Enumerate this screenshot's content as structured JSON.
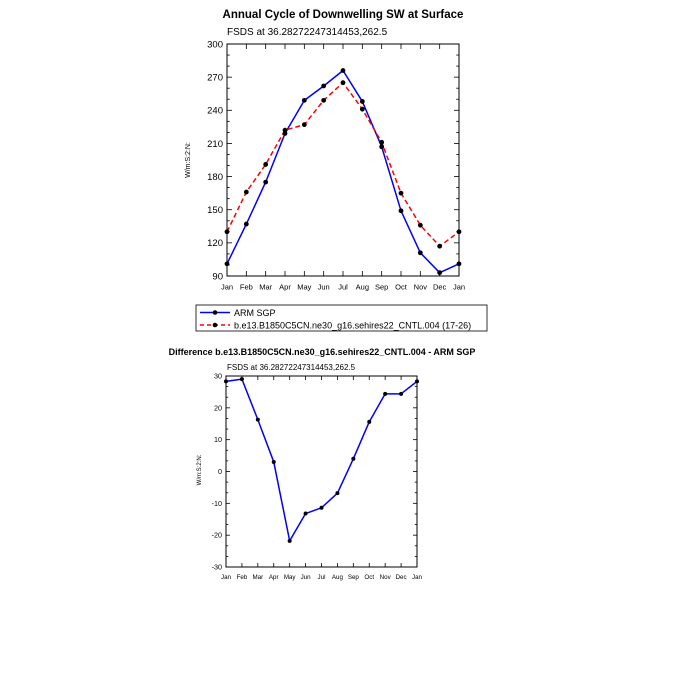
{
  "chart_data": [
    {
      "type": "line",
      "title": "Annual Cycle of Downwelling SW at Surface",
      "subtitle": "FSDS at 36.28272247314453,262.5",
      "xlabel": "",
      "ylabel": "W/m:S:2:N:",
      "categories": [
        "Jan",
        "Feb",
        "Mar",
        "Apr",
        "May",
        "Jun",
        "Jul",
        "Aug",
        "Sep",
        "Oct",
        "Nov",
        "Dec",
        "Jan"
      ],
      "ylim": [
        90,
        300
      ],
      "yticks": [
        90,
        120,
        150,
        180,
        210,
        240,
        270,
        300
      ],
      "legend_position": "bottom",
      "series": [
        {
          "name": "ARM SGP",
          "color": "#0000ff",
          "dash": "solid",
          "values": [
            101,
            137,
            175,
            219,
            249,
            262,
            276,
            248,
            207,
            149,
            111,
            93,
            101
          ]
        },
        {
          "name": "b.e13.B1850C5CN.ne30_g16.sehires22_CNTL.004 (17-26)",
          "color": "#ff0000",
          "dash": "dashed",
          "values": [
            130,
            166,
            191,
            222,
            227,
            249,
            265,
            241,
            211,
            165,
            136,
            117,
            130
          ]
        }
      ]
    },
    {
      "type": "line",
      "title": "Difference b.e13.B1850C5CN.ne30_g16.sehires22_CNTL.004 - ARM SGP",
      "subtitle": "FSDS at 36.28272247314453,262.5",
      "xlabel": "",
      "ylabel": "W/m:S:2:N:",
      "categories": [
        "Jan",
        "Feb",
        "Mar",
        "Apr",
        "May",
        "Jun",
        "Jul",
        "Aug",
        "Sep",
        "Oct",
        "Nov",
        "Dec",
        "Jan"
      ],
      "ylim": [
        -30,
        30
      ],
      "yticks": [
        -30,
        -20,
        -10,
        0,
        10,
        20,
        30
      ],
      "series": [
        {
          "name": "Difference",
          "color": "#0000ff",
          "dash": "solid",
          "values": [
            28.3,
            29,
            16.3,
            3,
            -21.8,
            -13.2,
            -11.4,
            -6.8,
            4,
            15.6,
            24.4,
            24.4,
            28.3
          ]
        }
      ]
    }
  ]
}
